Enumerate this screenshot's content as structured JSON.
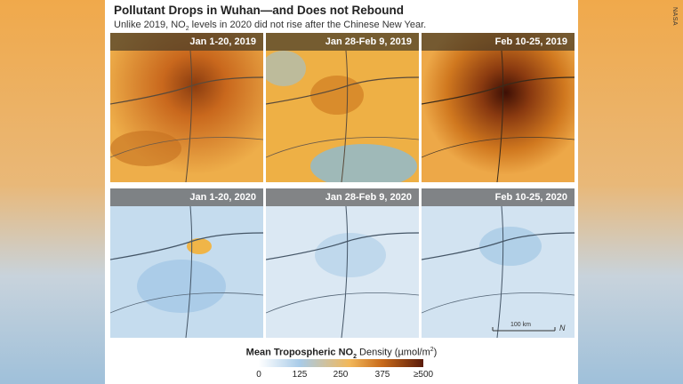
{
  "title": "Pollutant Drops in Wuhan—and Does not Rebound",
  "subtitle": {
    "pre": "Unlike 2019, NO",
    "sub": "2",
    "post": " levels in 2020 did not rise after the Chinese New Year."
  },
  "credit": "NASA",
  "panels": [
    {
      "label": "Jan 1-20, 2019",
      "year": "2019"
    },
    {
      "label": "Jan 28-Feb 9, 2019",
      "year": "2019"
    },
    {
      "label": "Feb 10-25, 2019",
      "year": "2019"
    },
    {
      "label": "Jan 1-20, 2020",
      "year": "2020"
    },
    {
      "label": "Jan 28-Feb 9, 2020",
      "year": "2020"
    },
    {
      "label": "Feb 10-25, 2020",
      "year": "2020"
    }
  ],
  "scale_bar": {
    "label": "100 km",
    "north": "N"
  },
  "legend": {
    "title_pre": "Mean Tropospheric NO",
    "title_sub": "2",
    "title_post": " Density (µmol/m",
    "title_sup": "2",
    "title_end": ")",
    "ticks": [
      "0",
      "125",
      "250",
      "375",
      "≥500"
    ],
    "colors": [
      "#ffffff",
      "#a8cbe8",
      "#f2b85a",
      "#c86a1a",
      "#5a1b0a"
    ]
  }
}
